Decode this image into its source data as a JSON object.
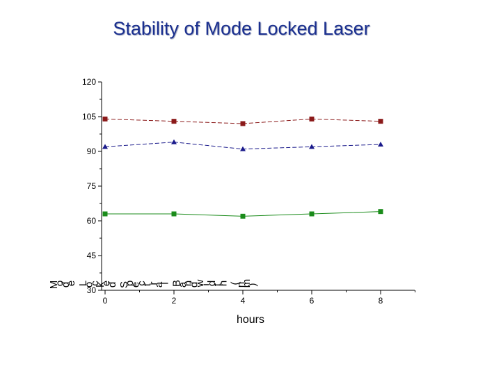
{
  "page": {
    "title": "Stability of Mode Locked Laser"
  },
  "chart_data": {
    "type": "line",
    "title": "Stability of Mode Locked Laser",
    "xlabel": "hours",
    "ylabel": "Mode Locked Spectral Bandwidth (nm)",
    "x": [
      0,
      2,
      4,
      6,
      8
    ],
    "xlim": [
      0,
      9
    ],
    "ylim": [
      30,
      120
    ],
    "x_ticks": [
      0,
      2,
      4,
      6,
      8
    ],
    "y_ticks": [
      30,
      45,
      60,
      75,
      90,
      105,
      120
    ],
    "grid": false,
    "legend": "none",
    "series": [
      {
        "values": [
          104,
          103,
          102,
          104,
          103
        ],
        "color": "#8b1a1a",
        "marker": "square"
      },
      {
        "values": [
          92,
          94,
          91,
          92,
          93
        ],
        "color": "#1a1a8b",
        "marker": "triangle"
      },
      {
        "values": [
          63,
          63,
          62,
          63,
          64
        ],
        "color": "#1a8b1a",
        "marker": "square"
      }
    ]
  }
}
